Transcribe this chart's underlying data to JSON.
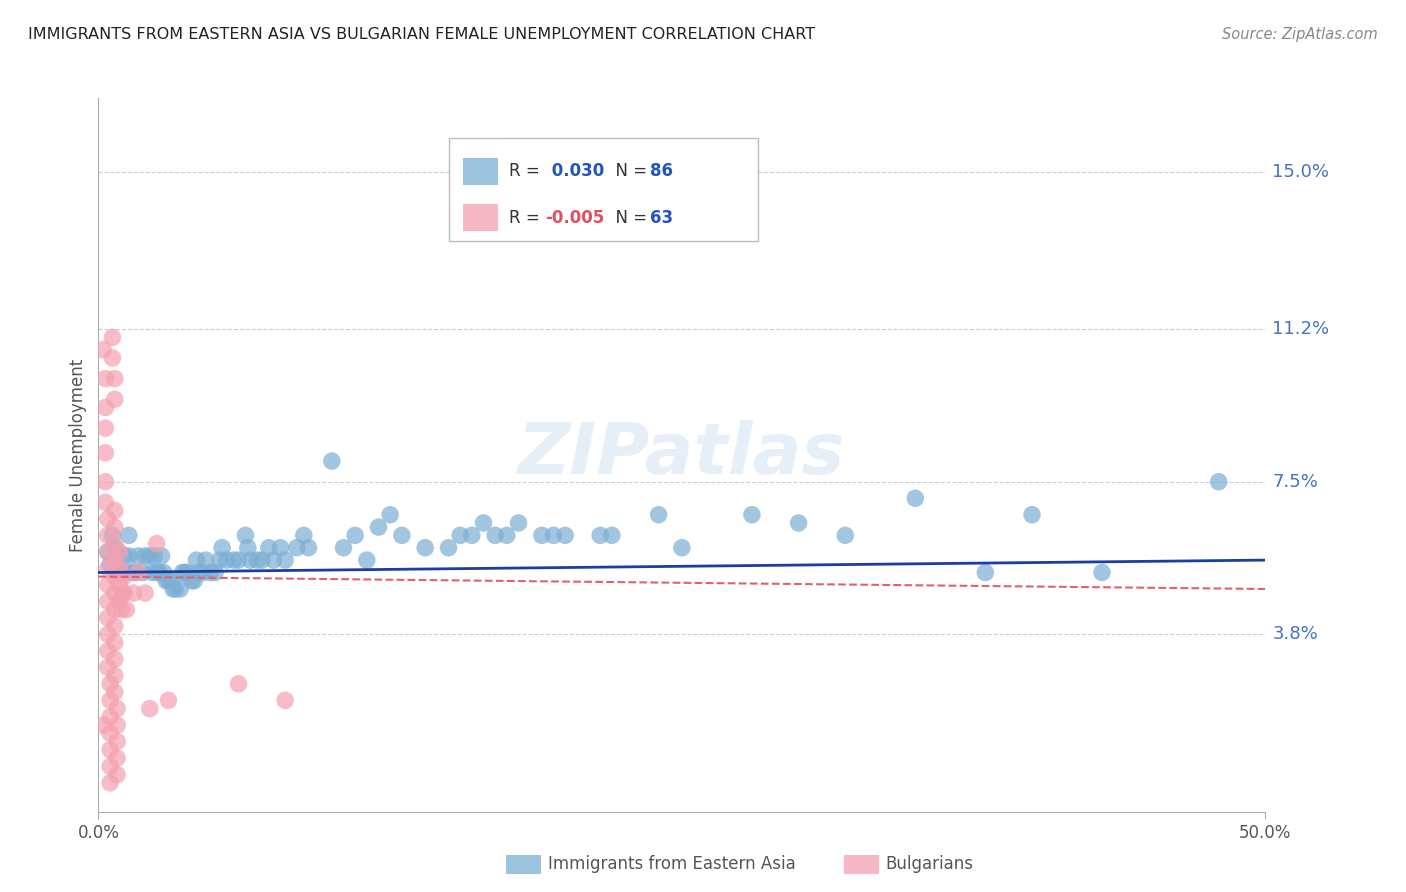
{
  "title": "IMMIGRANTS FROM EASTERN ASIA VS BULGARIAN FEMALE UNEMPLOYMENT CORRELATION CHART",
  "source": "Source: ZipAtlas.com",
  "ylabel": "Female Unemployment",
  "watermark": "ZIPatlas",
  "xmin": 0.0,
  "xmax": 0.5,
  "ymin": -0.005,
  "ymax": 0.168,
  "yticks": [
    0.038,
    0.075,
    0.112,
    0.15
  ],
  "ytick_labels": [
    "3.8%",
    "7.5%",
    "11.2%",
    "15.0%"
  ],
  "xticks": [
    0.0,
    0.5
  ],
  "xtick_labels": [
    "0.0%",
    "50.0%"
  ],
  "legend1_r": "0.030",
  "legend1_n": "86",
  "legend2_r": "-0.005",
  "legend2_n": "63",
  "blue_color": "#7BAFD4",
  "pink_color": "#F4A0B0",
  "line_blue": "#1A3FA0",
  "line_pink": "#E06070",
  "grid_color": "#CCCCCC",
  "blue_points": [
    [
      0.004,
      0.058
    ],
    [
      0.005,
      0.055
    ],
    [
      0.006,
      0.062
    ],
    [
      0.007,
      0.059
    ],
    [
      0.008,
      0.053
    ],
    [
      0.01,
      0.053
    ],
    [
      0.011,
      0.057
    ],
    [
      0.012,
      0.053
    ],
    [
      0.013,
      0.062
    ],
    [
      0.013,
      0.057
    ],
    [
      0.015,
      0.053
    ],
    [
      0.016,
      0.053
    ],
    [
      0.017,
      0.057
    ],
    [
      0.019,
      0.053
    ],
    [
      0.02,
      0.057
    ],
    [
      0.022,
      0.057
    ],
    [
      0.023,
      0.053
    ],
    [
      0.024,
      0.057
    ],
    [
      0.025,
      0.053
    ],
    [
      0.026,
      0.053
    ],
    [
      0.027,
      0.057
    ],
    [
      0.028,
      0.053
    ],
    [
      0.029,
      0.051
    ],
    [
      0.03,
      0.051
    ],
    [
      0.031,
      0.051
    ],
    [
      0.032,
      0.049
    ],
    [
      0.033,
      0.049
    ],
    [
      0.035,
      0.049
    ],
    [
      0.036,
      0.053
    ],
    [
      0.037,
      0.053
    ],
    [
      0.038,
      0.053
    ],
    [
      0.04,
      0.051
    ],
    [
      0.041,
      0.051
    ],
    [
      0.042,
      0.056
    ],
    [
      0.043,
      0.053
    ],
    [
      0.045,
      0.053
    ],
    [
      0.046,
      0.056
    ],
    [
      0.048,
      0.053
    ],
    [
      0.05,
      0.053
    ],
    [
      0.052,
      0.056
    ],
    [
      0.053,
      0.059
    ],
    [
      0.055,
      0.056
    ],
    [
      0.058,
      0.056
    ],
    [
      0.06,
      0.056
    ],
    [
      0.063,
      0.062
    ],
    [
      0.064,
      0.059
    ],
    [
      0.065,
      0.056
    ],
    [
      0.068,
      0.056
    ],
    [
      0.07,
      0.056
    ],
    [
      0.073,
      0.059
    ],
    [
      0.075,
      0.056
    ],
    [
      0.078,
      0.059
    ],
    [
      0.08,
      0.056
    ],
    [
      0.085,
      0.059
    ],
    [
      0.088,
      0.062
    ],
    [
      0.09,
      0.059
    ],
    [
      0.1,
      0.08
    ],
    [
      0.105,
      0.059
    ],
    [
      0.11,
      0.062
    ],
    [
      0.115,
      0.056
    ],
    [
      0.12,
      0.064
    ],
    [
      0.125,
      0.067
    ],
    [
      0.13,
      0.062
    ],
    [
      0.14,
      0.059
    ],
    [
      0.15,
      0.059
    ],
    [
      0.155,
      0.062
    ],
    [
      0.16,
      0.062
    ],
    [
      0.165,
      0.065
    ],
    [
      0.17,
      0.062
    ],
    [
      0.175,
      0.062
    ],
    [
      0.18,
      0.065
    ],
    [
      0.19,
      0.062
    ],
    [
      0.195,
      0.062
    ],
    [
      0.2,
      0.062
    ],
    [
      0.215,
      0.062
    ],
    [
      0.22,
      0.062
    ],
    [
      0.24,
      0.067
    ],
    [
      0.25,
      0.059
    ],
    [
      0.28,
      0.067
    ],
    [
      0.3,
      0.065
    ],
    [
      0.32,
      0.062
    ],
    [
      0.35,
      0.071
    ],
    [
      0.38,
      0.053
    ],
    [
      0.4,
      0.067
    ],
    [
      0.43,
      0.053
    ],
    [
      0.48,
      0.075
    ]
  ],
  "pink_points": [
    [
      0.002,
      0.107
    ],
    [
      0.003,
      0.1
    ],
    [
      0.003,
      0.093
    ],
    [
      0.003,
      0.088
    ],
    [
      0.003,
      0.082
    ],
    [
      0.003,
      0.075
    ],
    [
      0.003,
      0.07
    ],
    [
      0.004,
      0.066
    ],
    [
      0.004,
      0.062
    ],
    [
      0.004,
      0.058
    ],
    [
      0.004,
      0.054
    ],
    [
      0.004,
      0.05
    ],
    [
      0.004,
      0.046
    ],
    [
      0.004,
      0.042
    ],
    [
      0.004,
      0.038
    ],
    [
      0.004,
      0.034
    ],
    [
      0.004,
      0.03
    ],
    [
      0.005,
      0.026
    ],
    [
      0.005,
      0.022
    ],
    [
      0.005,
      0.018
    ],
    [
      0.005,
      0.014
    ],
    [
      0.005,
      0.01
    ],
    [
      0.005,
      0.006
    ],
    [
      0.005,
      0.002
    ],
    [
      0.006,
      0.11
    ],
    [
      0.006,
      0.105
    ],
    [
      0.007,
      0.1
    ],
    [
      0.007,
      0.095
    ],
    [
      0.007,
      0.068
    ],
    [
      0.007,
      0.064
    ],
    [
      0.007,
      0.06
    ],
    [
      0.007,
      0.056
    ],
    [
      0.007,
      0.052
    ],
    [
      0.007,
      0.048
    ],
    [
      0.007,
      0.044
    ],
    [
      0.007,
      0.04
    ],
    [
      0.007,
      0.036
    ],
    [
      0.007,
      0.032
    ],
    [
      0.007,
      0.028
    ],
    [
      0.007,
      0.024
    ],
    [
      0.008,
      0.02
    ],
    [
      0.008,
      0.016
    ],
    [
      0.008,
      0.012
    ],
    [
      0.008,
      0.008
    ],
    [
      0.008,
      0.004
    ],
    [
      0.009,
      0.058
    ],
    [
      0.009,
      0.054
    ],
    [
      0.009,
      0.05
    ],
    [
      0.009,
      0.046
    ],
    [
      0.01,
      0.048
    ],
    [
      0.01,
      0.044
    ],
    [
      0.011,
      0.052
    ],
    [
      0.011,
      0.048
    ],
    [
      0.012,
      0.044
    ],
    [
      0.015,
      0.048
    ],
    [
      0.017,
      0.053
    ],
    [
      0.02,
      0.048
    ],
    [
      0.022,
      0.02
    ],
    [
      0.025,
      0.06
    ],
    [
      0.03,
      0.022
    ],
    [
      0.06,
      0.026
    ],
    [
      0.08,
      0.022
    ],
    [
      0.002,
      0.016
    ]
  ],
  "blue_line_y0": 0.053,
  "blue_line_y1": 0.056,
  "pink_line_y0": 0.052,
  "pink_line_y1": 0.049
}
